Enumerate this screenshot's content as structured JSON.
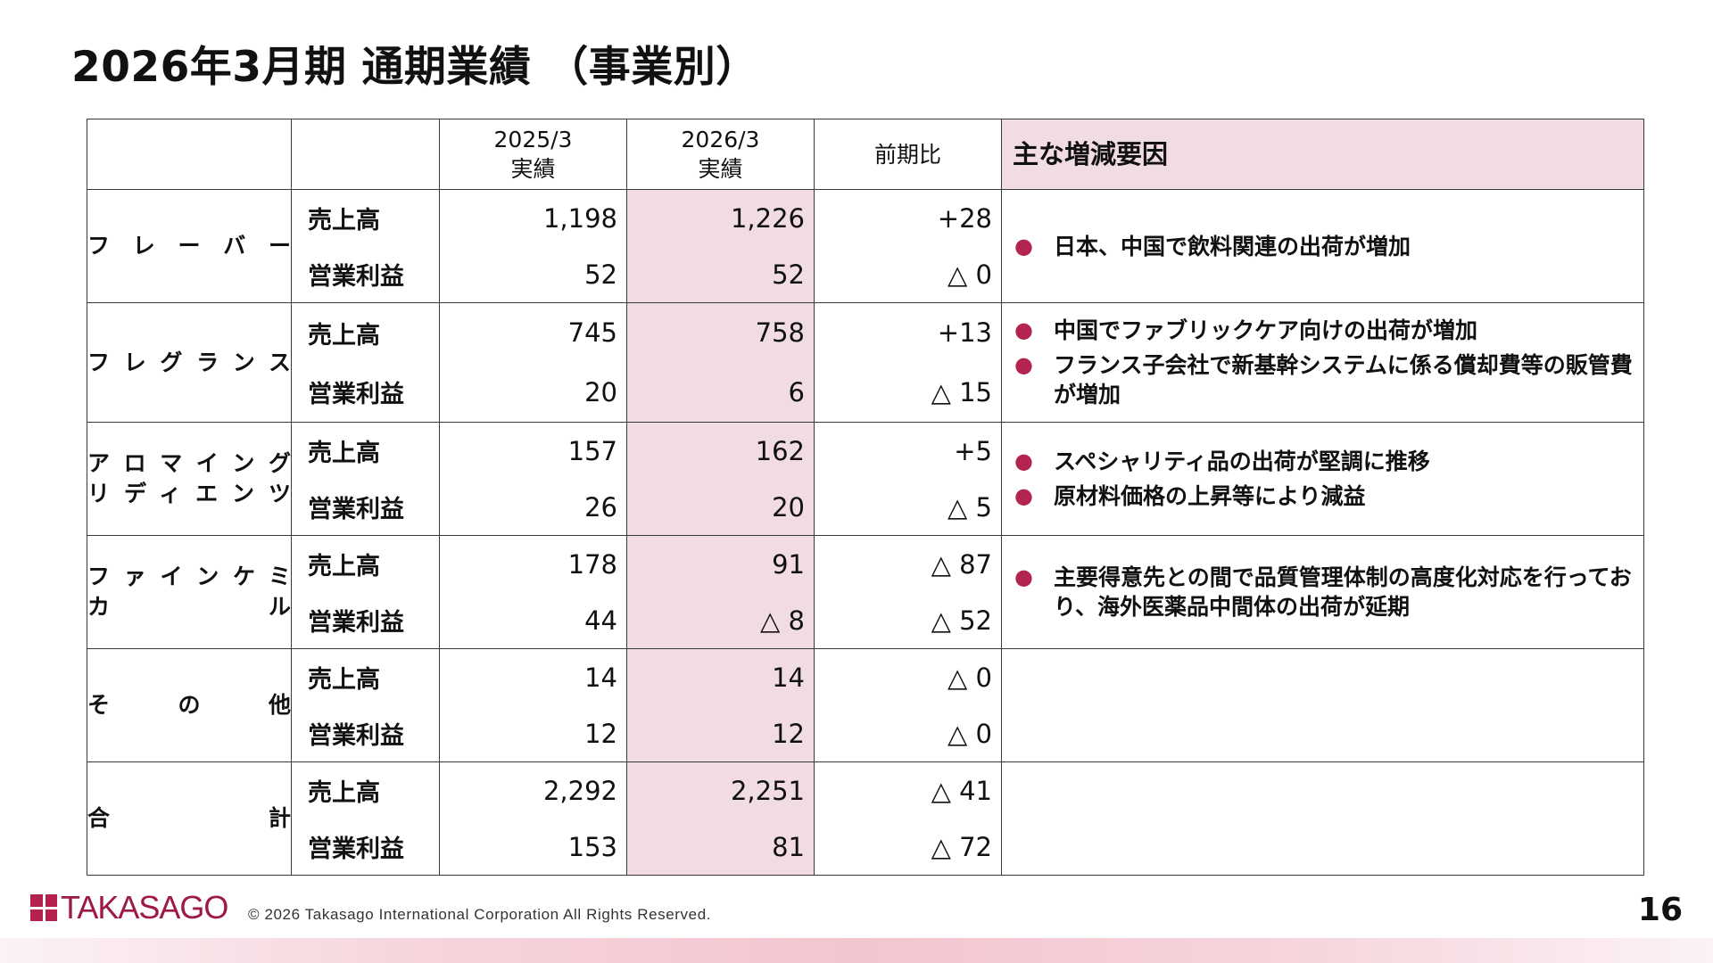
{
  "title": "2026年3月期 通期業績 （事業別）",
  "table": {
    "headers": {
      "segment": "",
      "item": "",
      "prev": "2025/3\n実績",
      "curr": "2026/3\n実績",
      "diff": "前期比",
      "reasons": "主な増減要因"
    },
    "rows": [
      {
        "segment": [
          "フ レ ー バ ー"
        ],
        "sales": {
          "label": "売上高",
          "prev": "1,198",
          "curr": "1,226",
          "diff": "+28"
        },
        "op": {
          "label": "営業利益",
          "prev": "52",
          "curr": "52",
          "diff": "△ 0"
        },
        "reasons": [
          "日本、中国で飲料関連の出荷が増加"
        ]
      },
      {
        "segment": [
          "フレグランス"
        ],
        "sales": {
          "label": "売上高",
          "prev": "745",
          "curr": "758",
          "diff": "+13"
        },
        "op": {
          "label": "営業利益",
          "prev": "20",
          "curr": "6",
          "diff": "△ 15"
        },
        "reasons": [
          "中国でファブリックケア向けの出荷が増加",
          "フランス子会社で新基幹システムに係る償却費等の販管費が増加"
        ]
      },
      {
        "segment": [
          "アロマイング",
          "リディエンツ"
        ],
        "sales": {
          "label": "売上高",
          "prev": "157",
          "curr": "162",
          "diff": "+5"
        },
        "op": {
          "label": "営業利益",
          "prev": "26",
          "curr": "20",
          "diff": "△ 5"
        },
        "reasons": [
          "スペシャリティ品の出荷が堅調に推移",
          "原材料価格の上昇等により減益"
        ]
      },
      {
        "segment": [
          "ファインケミ",
          "カ　　　ル"
        ],
        "sales": {
          "label": "売上高",
          "prev": "178",
          "curr": "91",
          "diff": "△ 87"
        },
        "op": {
          "label": "営業利益",
          "prev": "44",
          "curr": "△ 8",
          "diff": "△ 52"
        },
        "reasons": [
          "主要得意先との間で品質管理体制の高度化対応を行っており、海外医薬品中間体の出荷が延期"
        ]
      },
      {
        "segment": [
          "そ の 他"
        ],
        "sales": {
          "label": "売上高",
          "prev": "14",
          "curr": "14",
          "diff": "△ 0"
        },
        "op": {
          "label": "営業利益",
          "prev": "12",
          "curr": "12",
          "diff": "△ 0"
        },
        "reasons": []
      },
      {
        "segment": [
          "合 計"
        ],
        "sales": {
          "label": "売上高",
          "prev": "2,292",
          "curr": "2,251",
          "diff": "△ 41"
        },
        "op": {
          "label": "営業利益",
          "prev": "153",
          "curr": "81",
          "diff": "△ 72"
        },
        "reasons": []
      }
    ]
  },
  "bullet_char": "●",
  "colors": {
    "accent": "#b3244f",
    "highlight": "#f2dce3"
  },
  "footer": {
    "logo_text": "TAKASAGO",
    "copyright": "© 2026 Takasago International Corporation All Rights Reserved.",
    "page_number": "16"
  }
}
